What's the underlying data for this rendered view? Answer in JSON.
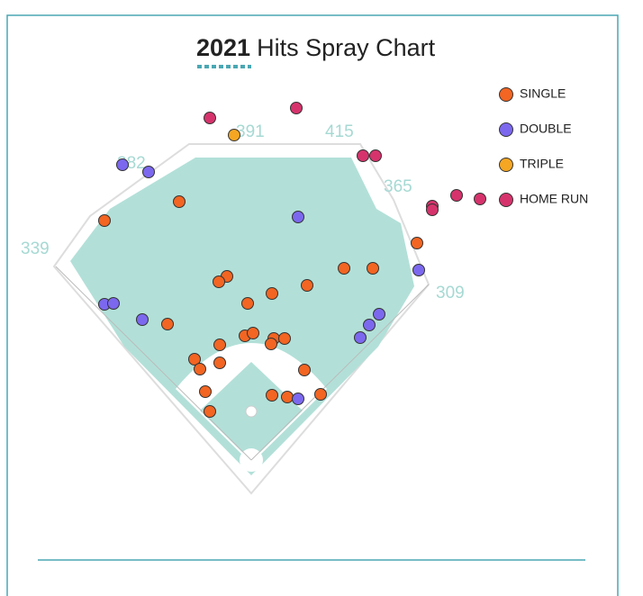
{
  "chart_data": {
    "type": "scatter",
    "title_prefix": "2021",
    "title": "Hits Spray Chart",
    "fence_distances": [
      "339",
      "382",
      "391",
      "415",
      "365",
      "309"
    ],
    "xlim": [
      -260,
      260
    ],
    "ylim": [
      0,
      420
    ],
    "series": [
      {
        "name": "SINGLE",
        "color": "#f26522",
        "x": [
          -80,
          -163,
          -27,
          -36,
          -4,
          23,
          62,
          103,
          135,
          184,
          -93,
          -35,
          -7,
          2,
          25,
          37,
          22,
          -63,
          -57,
          -35,
          59,
          -51,
          -46,
          23,
          40,
          77
        ],
        "y": [
          286,
          265,
          203,
          197,
          173,
          184,
          193,
          212,
          212,
          240,
          150,
          127,
          137,
          140,
          134,
          134,
          128,
          111,
          100,
          107,
          99,
          75,
          53,
          71,
          69,
          72
        ]
      },
      {
        "name": "DOUBLE",
        "color": "#7b68ee",
        "x": [
          -143,
          -114,
          52,
          186,
          -163,
          -153,
          -121,
          142,
          131,
          121,
          52
        ],
        "y": [
          327,
          319,
          269,
          210,
          172,
          173,
          155,
          161,
          149,
          135,
          67
        ]
      },
      {
        "name": "TRIPLE",
        "color": "#f5a623",
        "x": [
          -19
        ],
        "y": [
          360
        ]
      },
      {
        "name": "HOME RUN",
        "color": "#d6336c",
        "x": [
          -46,
          50,
          124,
          138,
          201,
          201,
          228,
          254
        ],
        "y": [
          379,
          390,
          337,
          337,
          281,
          277,
          293,
          289
        ]
      }
    ]
  }
}
